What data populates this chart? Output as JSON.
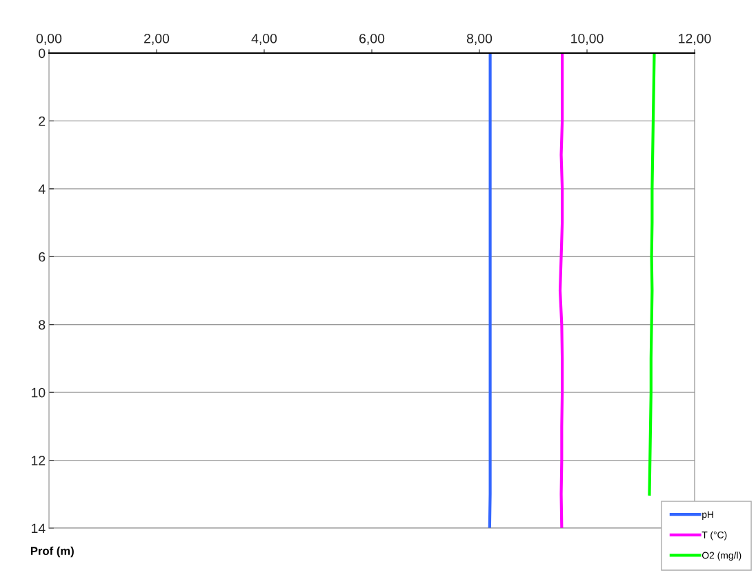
{
  "chart_data": {
    "type": "line",
    "orientation": "horizontal",
    "ylabel": "Prof (m)",
    "x": [
      0,
      1,
      2,
      3,
      4,
      5,
      6,
      7,
      8,
      9,
      10,
      11,
      12,
      13,
      14
    ],
    "series": [
      {
        "name": "pH",
        "color": "#3366ff",
        "values": [
          8.2,
          8.2,
          8.2,
          8.2,
          8.2,
          8.2,
          8.2,
          8.2,
          8.2,
          8.2,
          8.2,
          8.2,
          8.2,
          8.2,
          8.19
        ]
      },
      {
        "name": "T (°C)",
        "color": "#ff00ff",
        "values": [
          9.54,
          9.54,
          9.54,
          9.52,
          9.54,
          9.54,
          9.52,
          9.5,
          9.53,
          9.54,
          9.54,
          9.53,
          9.53,
          9.52,
          9.53
        ]
      },
      {
        "name": "O2 (mg/l)",
        "color": "#00ff00",
        "values": [
          11.25,
          11.24,
          11.23,
          11.22,
          11.21,
          11.21,
          11.2,
          11.21,
          11.2,
          11.19,
          11.19,
          11.18,
          11.17,
          11.16,
          null
        ]
      }
    ],
    "xlim": [
      0,
      12
    ],
    "xticks": [
      {
        "value": 0,
        "label": "0,00"
      },
      {
        "value": 2,
        "label": "2,00"
      },
      {
        "value": 4,
        "label": "4,00"
      },
      {
        "value": 6,
        "label": "6,00"
      },
      {
        "value": 8,
        "label": "8,00"
      },
      {
        "value": 10,
        "label": "10,00"
      },
      {
        "value": 12,
        "label": "12,00"
      }
    ],
    "ylim": [
      14,
      0
    ],
    "yticks": [
      0,
      2,
      4,
      6,
      8,
      10,
      12,
      14
    ],
    "grid": "y",
    "legend": "bottom right",
    "marker": "none",
    "line_style": "solid"
  }
}
